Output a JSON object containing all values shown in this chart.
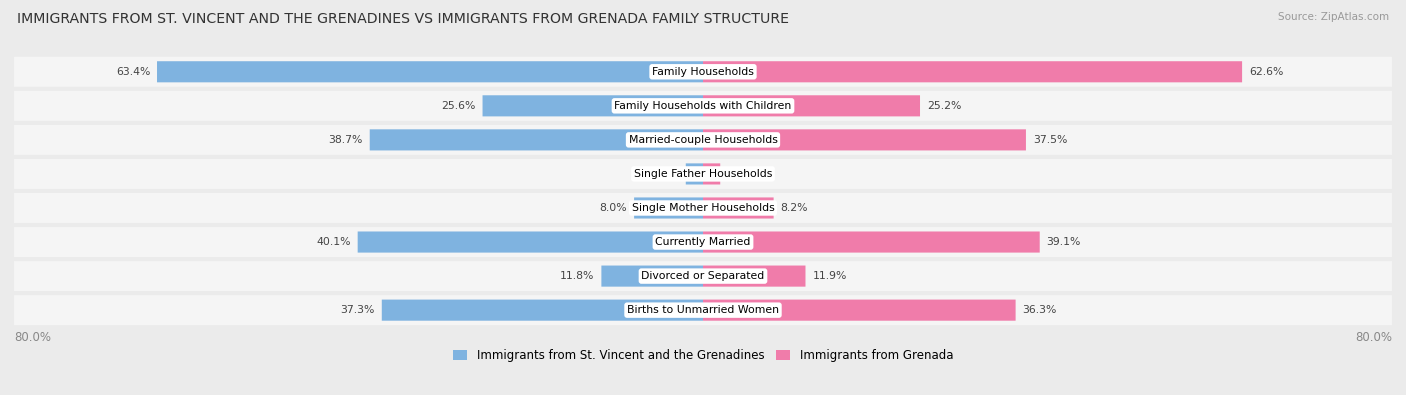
{
  "title": "IMMIGRANTS FROM ST. VINCENT AND THE GRENADINES VS IMMIGRANTS FROM GRENADA FAMILY STRUCTURE",
  "source": "Source: ZipAtlas.com",
  "categories": [
    "Family Households",
    "Family Households with Children",
    "Married-couple Households",
    "Single Father Households",
    "Single Mother Households",
    "Currently Married",
    "Divorced or Separated",
    "Births to Unmarried Women"
  ],
  "left_values": [
    63.4,
    25.6,
    38.7,
    2.0,
    8.0,
    40.1,
    11.8,
    37.3
  ],
  "right_values": [
    62.6,
    25.2,
    37.5,
    2.0,
    8.2,
    39.1,
    11.9,
    36.3
  ],
  "max_val": 80.0,
  "left_color": "#7fb3e0",
  "right_color": "#f07caa",
  "bg_color": "#ebebeb",
  "row_bg_color": "#f5f5f5",
  "legend_left": "Immigrants from St. Vincent and the Grenadines",
  "legend_right": "Immigrants from Grenada",
  "axis_label_left": "80.0%",
  "axis_label_right": "80.0%",
  "bar_height": 0.62,
  "label_fontsize": 7.8,
  "value_fontsize": 7.8,
  "title_fontsize": 10.2,
  "source_fontsize": 7.5
}
